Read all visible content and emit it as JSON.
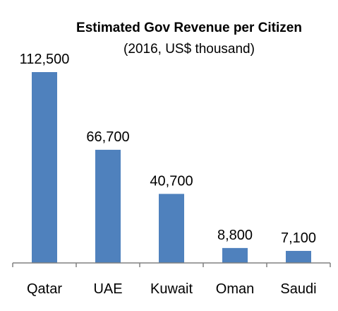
{
  "chart_data": {
    "type": "bar",
    "title": "Estimated Gov Revenue per Citizen",
    "subtitle": "(2016, US$ thousand)",
    "xlabel": "",
    "ylabel": "",
    "categories": [
      "Qatar",
      "UAE",
      "Kuwait",
      "Oman",
      "Saudi"
    ],
    "values": [
      112500,
      66700,
      40700,
      8800,
      7100
    ],
    "data_labels": [
      "112,500",
      "66,700",
      "40,700",
      "8,800",
      "7,100"
    ],
    "ylim": [
      0,
      125000
    ],
    "grid": false,
    "legend": "none",
    "bar_color": "#4f81bd",
    "axis_color": "#808080"
  }
}
